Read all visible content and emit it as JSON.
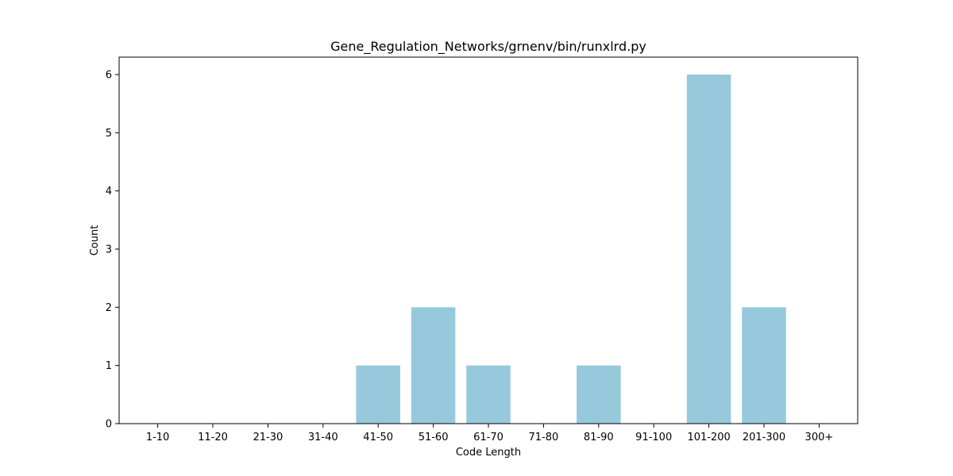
{
  "chart_data": {
    "type": "bar",
    "title": "Gene_Regulation_Networks/grnenv/bin/runxlrd.py",
    "xlabel": "Code Length",
    "ylabel": "Count",
    "categories": [
      "1-10",
      "11-20",
      "21-30",
      "31-40",
      "41-50",
      "51-60",
      "61-70",
      "71-80",
      "81-90",
      "91-100",
      "101-200",
      "201-300",
      "300+"
    ],
    "values": [
      0,
      0,
      0,
      0,
      1,
      2,
      1,
      0,
      1,
      0,
      6,
      2,
      0
    ],
    "ylim": [
      0,
      6.3
    ],
    "yticks": [
      0,
      1,
      2,
      3,
      4,
      5,
      6
    ],
    "bar_color": "#96c9dc",
    "grid": false,
    "legend": "none"
  }
}
